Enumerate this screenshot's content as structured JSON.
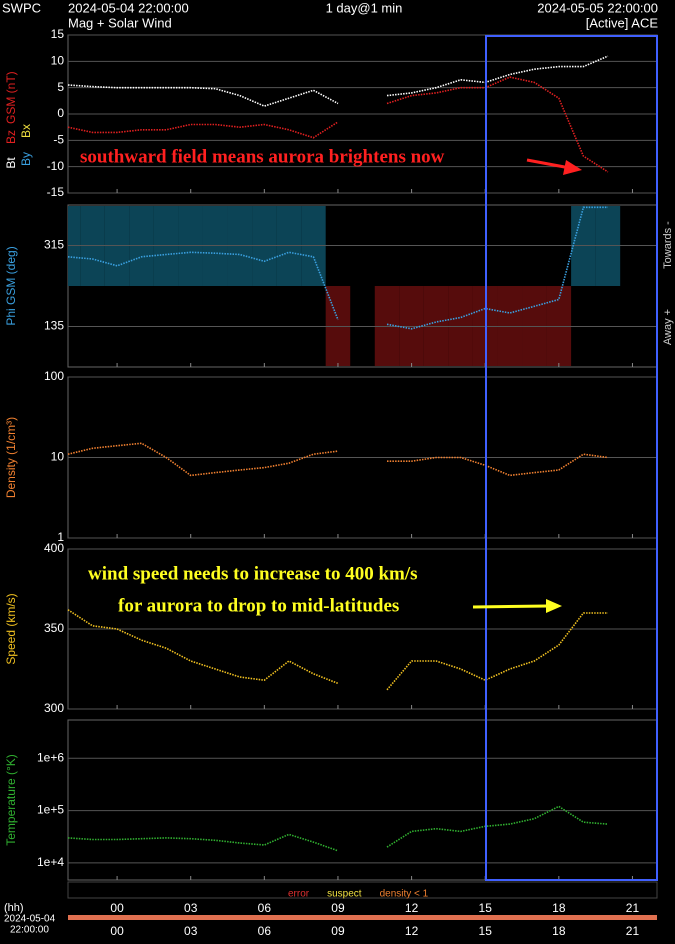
{
  "header": {
    "source": "SWPC",
    "start": "2024-05-04 22:00:00",
    "span": "1 day@1 min",
    "end": "2024-05-05 22:00:00",
    "subtitle": "Mag + Solar Wind",
    "status": "[Active] ACE"
  },
  "time_axis": {
    "xlim": [
      -2,
      22
    ],
    "xticks": [
      {
        "value": 0,
        "label": "00"
      },
      {
        "value": 3,
        "label": "03"
      },
      {
        "value": 6,
        "label": "06"
      },
      {
        "value": 9,
        "label": "09"
      },
      12,
      15,
      18,
      21
    ],
    "unit_label": "(hh)",
    "start_date": "2024-05-04",
    "start_time": "22:00:00",
    "flags": [
      {
        "label": "error",
        "color": "#e03030"
      },
      {
        "label": "suspect",
        "color": "#f0e040"
      },
      {
        "label": "density < 1",
        "color": "#f08030"
      }
    ]
  },
  "chart_data": [
    {
      "type": "line",
      "ylabel": "GSM (nT)",
      "extra_labels": [
        {
          "label": "Bx",
          "color": "#f0e040"
        },
        {
          "label": "By",
          "color": "#3aa0e0"
        }
      ],
      "ylim": [
        -15,
        15
      ],
      "yticks": [
        -15,
        -10,
        -5,
        0,
        5,
        10,
        15
      ],
      "log": false,
      "x": [
        -2,
        -1,
        0,
        1,
        2,
        3,
        4,
        5,
        6,
        7,
        8,
        9,
        10,
        11,
        12,
        13,
        14,
        15,
        16,
        17,
        18,
        19,
        20
      ],
      "series": [
        {
          "name": "Bt",
          "color": "#ffffff",
          "values": [
            5.5,
            5.2,
            5,
            5,
            5,
            5,
            4.8,
            3.5,
            1.5,
            3,
            4.5,
            2,
            null,
            3.5,
            4,
            5,
            6.5,
            6,
            7.5,
            8.5,
            9,
            9,
            11
          ]
        },
        {
          "name": "Bz",
          "color": "#e02020",
          "values": [
            -2.5,
            -3.5,
            -3.5,
            -3,
            -3,
            -2,
            -2,
            -2.5,
            -2,
            -3,
            -4.5,
            -1.5,
            null,
            2,
            3.5,
            4,
            5,
            5,
            7,
            6,
            3,
            -8,
            -11
          ]
        }
      ],
      "annotations": [
        "southward field means aurora brightens now"
      ]
    },
    {
      "type": "line",
      "ylabel": "Phi GSM (deg)",
      "right_labels": [
        "Towards -",
        "Away +"
      ],
      "shading_colors": [
        "#0c4456",
        "#560c0c"
      ],
      "ylim": [
        45,
        405
      ],
      "yticks": [
        135,
        315
      ],
      "log": false,
      "x": [
        -2,
        -1,
        0,
        1,
        2,
        3,
        4,
        5,
        6,
        7,
        8,
        9,
        10,
        11,
        12,
        13,
        14,
        15,
        16,
        17,
        18,
        19,
        20
      ],
      "series": [
        {
          "name": "Phi",
          "color": "#3aa0e0",
          "values": [
            290,
            285,
            270,
            290,
            295,
            300,
            298,
            295,
            280,
            300,
            290,
            150,
            null,
            140,
            130,
            145,
            155,
            175,
            165,
            180,
            195,
            400,
            400
          ]
        }
      ]
    },
    {
      "type": "line",
      "ylabel": "Density (1/cm³)",
      "ylim": [
        1,
        100
      ],
      "yticks": [
        1,
        10,
        100
      ],
      "log": true,
      "x": [
        -2,
        -1,
        0,
        1,
        2,
        3,
        4,
        5,
        6,
        7,
        8,
        9,
        10,
        11,
        12,
        13,
        14,
        15,
        16,
        17,
        18,
        19,
        20
      ],
      "series": [
        {
          "name": "Density",
          "color": "#f08030",
          "values": [
            11,
            13,
            14,
            15,
            10,
            6,
            6.5,
            7,
            7.5,
            8.5,
            11,
            12,
            null,
            9,
            9,
            10,
            10,
            8,
            6,
            6.5,
            7,
            11,
            10
          ]
        }
      ]
    },
    {
      "type": "line",
      "ylabel": "Speed (km/s)",
      "ylim": [
        300,
        400
      ],
      "yticks": [
        300,
        350,
        400
      ],
      "log": false,
      "x": [
        -2,
        -1,
        0,
        1,
        2,
        3,
        4,
        5,
        6,
        7,
        8,
        9,
        10,
        11,
        12,
        13,
        14,
        15,
        16,
        17,
        18,
        19,
        20
      ],
      "series": [
        {
          "name": "Speed",
          "color": "#f0c020",
          "values": [
            362,
            352,
            350,
            343,
            338,
            330,
            325,
            320,
            318,
            330,
            322,
            316,
            null,
            312,
            330,
            330,
            325,
            318,
            325,
            330,
            340,
            360,
            360
          ]
        }
      ],
      "annotations": [
        "wind speed needs to increase to 400 km/s",
        "for aurora to drop to mid-latitudes"
      ]
    },
    {
      "type": "line",
      "ylabel": "Temperature (°K)",
      "ylim": [
        4700,
        5400000
      ],
      "yticks": [
        {
          "value": 10000,
          "label": "1e+4"
        },
        {
          "value": 100000,
          "label": "1e+5"
        },
        {
          "value": 1000000,
          "label": "1e+6"
        }
      ],
      "log": true,
      "x": [
        -2,
        -1,
        0,
        1,
        2,
        3,
        4,
        5,
        6,
        7,
        8,
        9,
        10,
        11,
        12,
        13,
        14,
        15,
        16,
        17,
        18,
        19,
        20
      ],
      "series": [
        {
          "name": "Temperature",
          "color": "#30b030",
          "values": [
            30000,
            28000,
            28000,
            29000,
            30000,
            29000,
            27000,
            24000,
            22000,
            35000,
            25000,
            17000,
            null,
            20000,
            40000,
            45000,
            40000,
            50000,
            55000,
            70000,
            120000,
            60000,
            55000
          ]
        }
      ]
    }
  ]
}
